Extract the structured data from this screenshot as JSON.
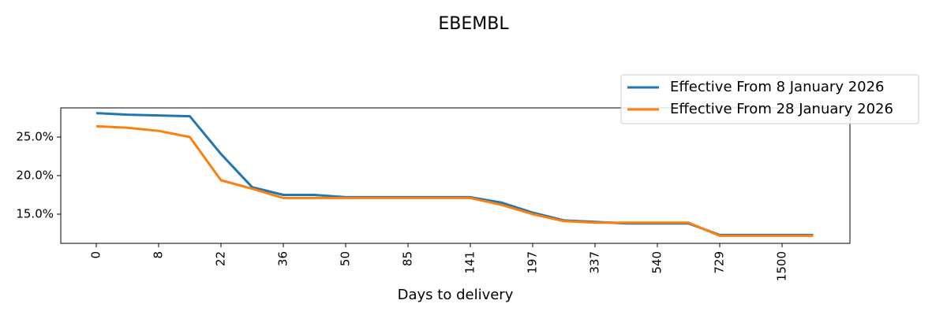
{
  "chart_data": {
    "type": "line",
    "title": "EBEMBL",
    "x_label": "Days to delivery",
    "categories": [
      "0",
      null,
      "8",
      null,
      "22",
      null,
      "36",
      null,
      "50",
      null,
      "85",
      null,
      "141",
      null,
      "197",
      null,
      "337",
      null,
      "540",
      null,
      "729",
      null,
      "1500",
      null
    ],
    "series": [
      {
        "name": "Effective From 8 January 2026",
        "color": "#1f77b4",
        "values": [
          28.1,
          27.9,
          27.8,
          27.7,
          22.8,
          18.5,
          17.5,
          17.5,
          17.2,
          17.2,
          17.2,
          17.2,
          17.2,
          16.5,
          15.2,
          14.2,
          14.0,
          13.8,
          13.8,
          13.8,
          12.3,
          12.3,
          12.3,
          12.3
        ]
      },
      {
        "name": "Effective From 28 January 2026",
        "color": "#ff7f0e",
        "values": [
          26.4,
          26.2,
          25.8,
          25.0,
          19.4,
          18.3,
          17.1,
          17.1,
          17.1,
          17.1,
          17.1,
          17.1,
          17.1,
          16.2,
          15.0,
          14.1,
          13.9,
          13.9,
          13.9,
          13.9,
          12.2,
          12.2,
          12.2,
          12.2
        ]
      }
    ],
    "ylim": [
      11.22,
      28.78
    ],
    "yticks": [
      {
        "value": 15,
        "label": "15.0%"
      },
      {
        "value": 20,
        "label": "20.0%"
      },
      {
        "value": 25,
        "label": "25.0%"
      }
    ],
    "legend": "upper right",
    "grid": false
  }
}
